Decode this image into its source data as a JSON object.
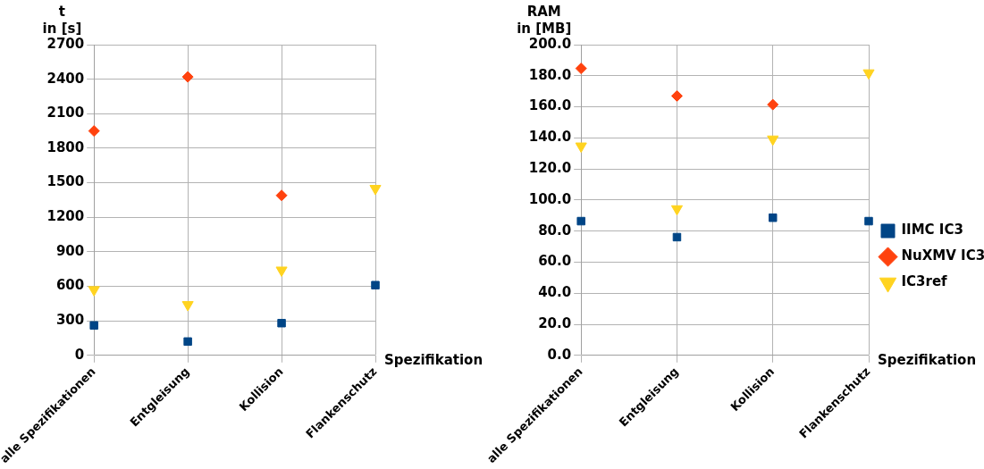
{
  "chart_data": [
    {
      "type": "scatter",
      "ylabel": "t\nin [s]",
      "xlabel": "Spezifikation",
      "categories": [
        "alle Spezifikationen",
        "Entgleisung",
        "Kollision",
        "Flankenschutz"
      ],
      "ylim": [
        0,
        2700
      ],
      "yticks": [
        0,
        300,
        600,
        900,
        1200,
        1500,
        1800,
        2100,
        2400,
        2700
      ],
      "grid": true,
      "legend": false,
      "series": [
        {
          "color": "#004586",
          "marker": "square",
          "values": [
            260,
            120,
            280,
            610
          ]
        },
        {
          "color": "#ff420e",
          "marker": "diamond",
          "values": [
            1950,
            2420,
            1390,
            null
          ]
        },
        {
          "color": "#ffd320",
          "marker": "triangle",
          "values": [
            570,
            440,
            740,
            1450
          ]
        }
      ]
    },
    {
      "type": "scatter",
      "ylabel": "RAM\nin [MB]",
      "xlabel": "Spezifikation",
      "categories": [
        "alle Spezifikationen",
        "Entgleisung",
        "Kollision",
        "Flankenschutz"
      ],
      "ylim": [
        0,
        200
      ],
      "yticks": [
        {
          "value": 0,
          "label": "0.0"
        },
        {
          "value": 20,
          "label": "20.0"
        },
        {
          "value": 40,
          "label": "40.0"
        },
        {
          "value": 60,
          "label": "60.0"
        },
        {
          "value": 80,
          "label": "80.0"
        },
        {
          "value": 100,
          "label": "100.0"
        },
        {
          "value": 120,
          "label": "120.0"
        },
        {
          "value": 140,
          "label": "140.0"
        },
        {
          "value": 160,
          "label": "160.0"
        },
        {
          "value": 180,
          "label": "180.0"
        },
        {
          "value": 200,
          "label": "200.0"
        }
      ],
      "grid": true,
      "legend": "right",
      "series": [
        {
          "name": "IIMC IC3",
          "color": "#004586",
          "marker": "square",
          "values": [
            86.4,
            76.1,
            88.6,
            86.4
          ]
        },
        {
          "name": "NuXMV IC3",
          "color": "#ff420e",
          "marker": "diamond",
          "values": [
            184.7,
            167,
            161.4,
            null
          ]
        },
        {
          "name": "IC3ref",
          "color": "#ffd320",
          "marker": "triangle",
          "values": [
            134.7,
            94.3,
            139.2,
            181.8
          ]
        }
      ]
    }
  ]
}
